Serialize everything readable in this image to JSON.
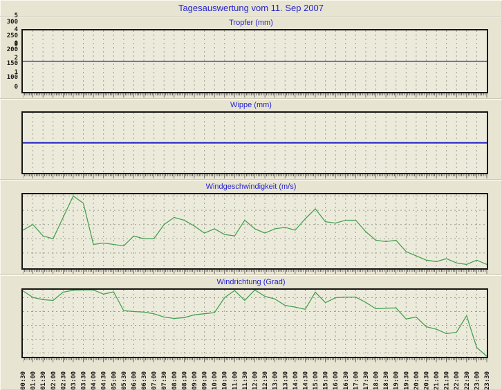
{
  "page": {
    "title": "Tagesauswertung vom 11. Sep 2007"
  },
  "colors": {
    "title_text": "#2424cc",
    "line_blue": "#2929c8",
    "line_green": "#46a152",
    "plot_background": "#ecebdb",
    "page_background": "#e8e4d2",
    "grid": "#9d9d8d"
  },
  "chart_data": [
    {
      "type": "line",
      "title": "Tropfer (mm)",
      "color": "#2929c8",
      "categories": [
        "00:30",
        "01:00",
        "01:30",
        "02:00",
        "02:30",
        "03:00",
        "03:30",
        "04:00",
        "04:30",
        "05:00",
        "05:30",
        "06:00",
        "06:30",
        "07:00",
        "07:30",
        "08:00",
        "08:30",
        "09:00",
        "09:30",
        "10:00",
        "10:30",
        "11:00",
        "11:30",
        "12:00",
        "12:30",
        "13:00",
        "13:30",
        "14:00",
        "14:30",
        "15:00",
        "15:30",
        "16:00",
        "16:30",
        "17:00",
        "17:30",
        "18:00",
        "18:30",
        "19:00",
        "19:30",
        "20:00",
        "20:30",
        "21:00",
        "21:30",
        "22:00",
        "22:30",
        "23:00",
        "23:30"
      ],
      "values": [
        0,
        0,
        0,
        0,
        0,
        0,
        0,
        0,
        0,
        0,
        0,
        0,
        0,
        0,
        0,
        0,
        0,
        0,
        0,
        0,
        0,
        0,
        0,
        0,
        0,
        0,
        0,
        0,
        0,
        0,
        0,
        0,
        0,
        0,
        0,
        0,
        0,
        0,
        0,
        0,
        0,
        0,
        0,
        0,
        0,
        0,
        0
      ],
      "yticks": [
        0
      ],
      "ylim": [
        -1,
        1
      ]
    },
    {
      "type": "line",
      "title": "Wippe (mm)",
      "color": "#2929c8",
      "categories": [
        "00:30",
        "01:00",
        "01:30",
        "02:00",
        "02:30",
        "03:00",
        "03:30",
        "04:00",
        "04:30",
        "05:00",
        "05:30",
        "06:00",
        "06:30",
        "07:00",
        "07:30",
        "08:00",
        "08:30",
        "09:00",
        "09:30",
        "10:00",
        "10:30",
        "11:00",
        "11:30",
        "12:00",
        "12:30",
        "13:00",
        "13:30",
        "14:00",
        "14:30",
        "15:00",
        "15:30",
        "16:00",
        "16:30",
        "17:00",
        "17:30",
        "18:00",
        "18:30",
        "19:00",
        "19:30",
        "20:00",
        "20:30",
        "21:00",
        "21:30",
        "22:00",
        "22:30",
        "23:00",
        "23:30"
      ],
      "values": [
        0,
        0,
        0,
        0,
        0,
        0,
        0,
        0,
        0,
        0,
        0,
        0,
        0,
        0,
        0,
        0,
        0,
        0,
        0,
        0,
        0,
        0,
        0,
        0,
        0,
        0,
        0,
        0,
        0,
        0,
        0,
        0,
        0,
        0,
        0,
        0,
        0,
        0,
        0,
        0,
        0,
        0,
        0,
        0,
        0,
        0,
        0
      ],
      "yticks": [
        0
      ],
      "ylim": [
        -1,
        1
      ]
    },
    {
      "type": "line",
      "title": "Windgeschwindigkeit (m/s)",
      "color": "#46a152",
      "categories": [
        "00:30",
        "01:00",
        "01:30",
        "02:00",
        "02:30",
        "03:00",
        "03:30",
        "04:00",
        "04:30",
        "05:00",
        "05:30",
        "06:00",
        "06:30",
        "07:00",
        "07:30",
        "08:00",
        "08:30",
        "09:00",
        "09:30",
        "10:00",
        "10:30",
        "11:00",
        "11:30",
        "12:00",
        "12:30",
        "13:00",
        "13:30",
        "14:00",
        "14:30",
        "15:00",
        "15:30",
        "16:00",
        "16:30",
        "17:00",
        "17:30",
        "18:00",
        "18:30",
        "19:00",
        "19:30",
        "20:00",
        "20:30",
        "21:00",
        "21:30",
        "22:00",
        "22:30",
        "23:00",
        "23:30"
      ],
      "values": [
        2.6,
        3.0,
        2.2,
        2.0,
        3.5,
        5.0,
        4.5,
        1.6,
        1.7,
        1.6,
        1.5,
        2.2,
        2.0,
        2.0,
        3.0,
        3.5,
        3.3,
        2.9,
        2.4,
        2.7,
        2.3,
        2.2,
        3.3,
        2.7,
        2.4,
        2.7,
        2.8,
        2.6,
        3.4,
        4.1,
        3.2,
        3.1,
        3.3,
        3.3,
        2.5,
        1.9,
        1.8,
        1.9,
        1.1,
        0.8,
        0.5,
        0.4,
        0.6,
        0.3,
        0.2,
        0.5,
        0.2
      ],
      "yticks": [
        0,
        1,
        2,
        3,
        4,
        5
      ],
      "ylim": [
        0,
        5
      ]
    },
    {
      "type": "line",
      "title": "Windrichtung (Grad)",
      "color": "#46a152",
      "categories": [
        "00:30",
        "01:00",
        "01:30",
        "02:00",
        "02:30",
        "03:00",
        "03:30",
        "04:00",
        "04:30",
        "05:00",
        "05:30",
        "06:00",
        "06:30",
        "07:00",
        "07:30",
        "08:00",
        "08:30",
        "09:00",
        "09:30",
        "10:00",
        "10:30",
        "11:00",
        "11:30",
        "12:00",
        "12:30",
        "13:00",
        "13:30",
        "14:00",
        "14:30",
        "15:00",
        "15:30",
        "16:00",
        "16:30",
        "17:00",
        "17:30",
        "18:00",
        "18:30",
        "19:00",
        "19:30",
        "20:00",
        "20:30",
        "21:00",
        "21:30",
        "22:00",
        "22:30",
        "23:00",
        "23:30"
      ],
      "values": [
        325,
        301,
        293,
        290,
        320,
        327,
        328,
        328,
        313,
        321,
        253,
        250,
        248,
        242,
        230,
        225,
        228,
        238,
        242,
        246,
        300,
        326,
        290,
        328,
        305,
        295,
        272,
        266,
        258,
        320,
        282,
        300,
        302,
        302,
        283,
        260,
        262,
        263,
        223,
        230,
        195,
        186,
        170,
        175,
        235,
        120,
        88
      ],
      "yticks": [
        100,
        150,
        200,
        250,
        300
      ],
      "ylim": [
        100,
        300
      ]
    }
  ]
}
